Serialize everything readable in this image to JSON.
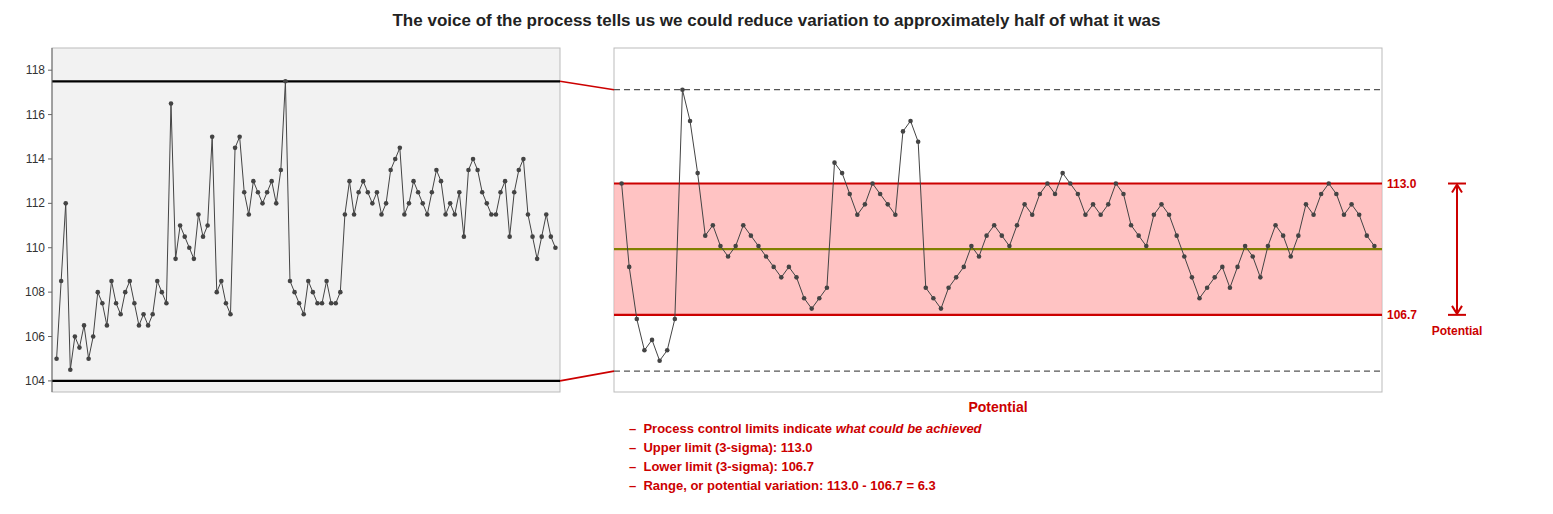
{
  "chart_data": [
    {
      "type": "line",
      "title": "The voice of the process tells us we could reduce variation to approximately half of what it was",
      "series": [
        {
          "color": "#444444",
          "marker": "circle",
          "values": [
            105.0,
            108.5,
            112.0,
            104.5,
            106.0,
            105.5,
            106.5,
            105.0,
            106.0,
            108.0,
            107.5,
            106.5,
            108.5,
            107.5,
            107.0,
            108.0,
            108.5,
            107.5,
            106.5,
            107.0,
            106.5,
            107.0,
            108.5,
            108.0,
            107.5,
            116.5,
            109.5,
            111.0,
            110.5,
            110.0,
            109.5,
            111.5,
            110.5,
            111.0,
            115.0,
            108.0,
            108.5,
            107.5,
            107.0,
            114.5,
            115.0,
            112.5,
            111.5,
            113.0,
            112.5,
            112.0,
            112.5,
            113.0,
            112.0,
            113.5,
            117.5,
            108.5,
            108.0,
            107.5,
            107.0,
            108.5,
            108.0,
            107.5,
            107.5,
            108.5,
            107.5,
            107.5,
            108.0,
            111.5,
            113.0,
            111.5,
            112.5,
            113.0,
            112.5,
            112.0,
            112.5,
            111.5,
            112.0,
            113.5,
            114.0,
            114.5,
            111.5,
            112.0,
            113.0,
            112.5,
            112.0,
            111.5,
            112.5,
            113.5,
            113.0,
            111.5,
            112.0,
            111.5,
            112.5,
            110.5,
            113.5,
            114.0,
            113.5,
            112.5,
            112.0,
            111.5,
            111.5,
            112.5,
            113.0,
            110.5,
            112.5,
            113.5,
            114.0,
            111.5,
            110.5,
            109.5,
            110.5,
            111.5,
            110.5,
            110.0
          ]
        }
      ],
      "lines": [
        {
          "value": 117.5,
          "color": "#000000",
          "line_style": "solid"
        },
        {
          "value": 104.0,
          "color": "#000000",
          "line_style": "solid"
        }
      ],
      "ylim": [
        103.5,
        119.0
      ],
      "yticks": [
        104,
        106,
        108,
        110,
        112,
        114,
        116,
        118
      ],
      "tick_labels": "y"
    },
    {
      "type": "line",
      "series": [
        {
          "color": "#444444",
          "marker": "circle",
          "values": [
            113.0,
            109.0,
            106.5,
            105.0,
            105.5,
            104.5,
            105.0,
            106.5,
            117.5,
            116.0,
            113.5,
            110.5,
            111.0,
            110.0,
            109.5,
            110.0,
            111.0,
            110.5,
            110.0,
            109.5,
            109.0,
            108.5,
            109.0,
            108.5,
            107.5,
            107.0,
            107.5,
            108.0,
            114.0,
            113.5,
            112.5,
            111.5,
            112.0,
            113.0,
            112.5,
            112.0,
            111.5,
            115.5,
            116.0,
            115.0,
            108.0,
            107.5,
            107.0,
            108.0,
            108.5,
            109.0,
            110.0,
            109.5,
            110.5,
            111.0,
            110.5,
            110.0,
            111.0,
            112.0,
            111.5,
            112.5,
            113.0,
            112.5,
            113.5,
            113.0,
            112.5,
            111.5,
            112.0,
            111.5,
            112.0,
            113.0,
            112.5,
            111.0,
            110.5,
            110.0,
            111.5,
            112.0,
            111.5,
            110.5,
            109.5,
            108.5,
            107.5,
            108.0,
            108.5,
            109.0,
            108.0,
            109.0,
            110.0,
            109.5,
            108.5,
            110.0,
            111.0,
            110.5,
            109.5,
            110.5,
            112.0,
            111.5,
            112.5,
            113.0,
            112.5,
            111.5,
            112.0,
            111.5,
            110.5,
            110.0
          ]
        }
      ],
      "band": {
        "from": 106.7,
        "to": 113.0,
        "color": "#ffaaaa"
      },
      "lines": [
        {
          "value": 113.0,
          "label": "113.0",
          "color": "#cc0000",
          "line_style": "solid"
        },
        {
          "value": 106.7,
          "label": "106.7",
          "color": "#cc0000",
          "line_style": "solid"
        },
        {
          "value": 109.85,
          "color": "#808000",
          "line_style": "solid"
        },
        {
          "value": 117.5,
          "color": "#555555",
          "line_style": "dashed"
        },
        {
          "value": 104.0,
          "color": "#555555",
          "line_style": "dashed"
        }
      ],
      "connectors": {
        "values": [
          117.5,
          104.0
        ],
        "color": "#cc0000"
      },
      "arrow": {
        "from": 106.7,
        "to": 113.0,
        "label": "Potential",
        "color": "#cc0000"
      },
      "annotation_color": "#cc0000",
      "notes_title": "Potential",
      "notes": [
        [
          "–  Process control limits indicate ",
          "what could be achieved"
        ],
        [
          "–  Upper limit (3-sigma): 113.0"
        ],
        [
          "–  Lower limit (3-sigma): 106.7"
        ],
        [
          "–  Range, or potential variation: 113.0 - 106.7 = 6.3"
        ]
      ],
      "ylim": [
        103.0,
        119.5
      ],
      "tick_labels": false
    }
  ]
}
